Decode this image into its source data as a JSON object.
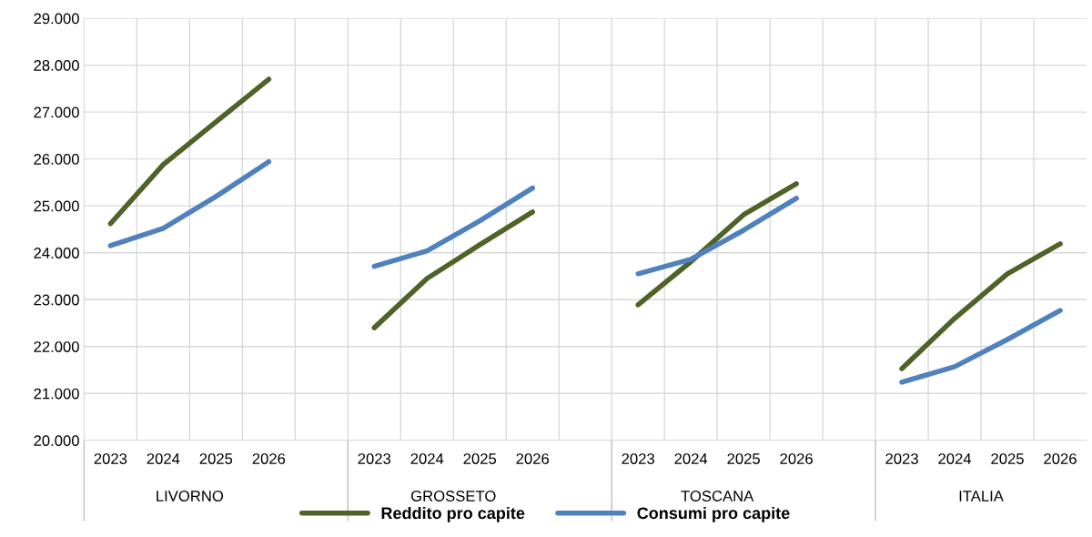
{
  "chart_data": {
    "type": "line",
    "categories": [
      "2023",
      "2024",
      "2025",
      "2026",
      null,
      "2023",
      "2024",
      "2025",
      "2026",
      null,
      "2023",
      "2024",
      "2025",
      "2026",
      null,
      "2023",
      "2024",
      "2025",
      "2026"
    ],
    "series": [
      {
        "name": "Reddito pro capite",
        "color": "#4f6228",
        "values": [
          24620,
          25880,
          26790,
          27700,
          null,
          22400,
          23450,
          24170,
          24870,
          null,
          22890,
          23810,
          24810,
          25470,
          null,
          21530,
          22600,
          23550,
          24190
        ]
      },
      {
        "name": "Consumi pro capite",
        "color": "#4f81bd",
        "values": [
          24150,
          24520,
          25200,
          25940,
          null,
          23710,
          24040,
          24680,
          25380,
          null,
          23550,
          23860,
          24480,
          25160,
          null,
          21240,
          21570,
          22150,
          22770
        ]
      }
    ],
    "annotations": [
      "LIVORNO",
      "GROSSETO",
      "TOSCANA",
      "ITALIA"
    ],
    "ylim": [
      20000,
      29000
    ],
    "yticks": [
      {
        "value": 20000,
        "label": "20.000"
      },
      {
        "value": 21000,
        "label": "21.000"
      },
      {
        "value": 22000,
        "label": "22.000"
      },
      {
        "value": 23000,
        "label": "23.000"
      },
      {
        "value": 24000,
        "label": "24.000"
      },
      {
        "value": 25000,
        "label": "25.000"
      },
      {
        "value": 26000,
        "label": "26.000"
      },
      {
        "value": 27000,
        "label": "27.000"
      },
      {
        "value": 28000,
        "label": "28.000"
      },
      {
        "value": 29000,
        "label": "29.000"
      }
    ],
    "grid": true,
    "legend": "bottom",
    "marker": "none",
    "line_style": "solid"
  }
}
